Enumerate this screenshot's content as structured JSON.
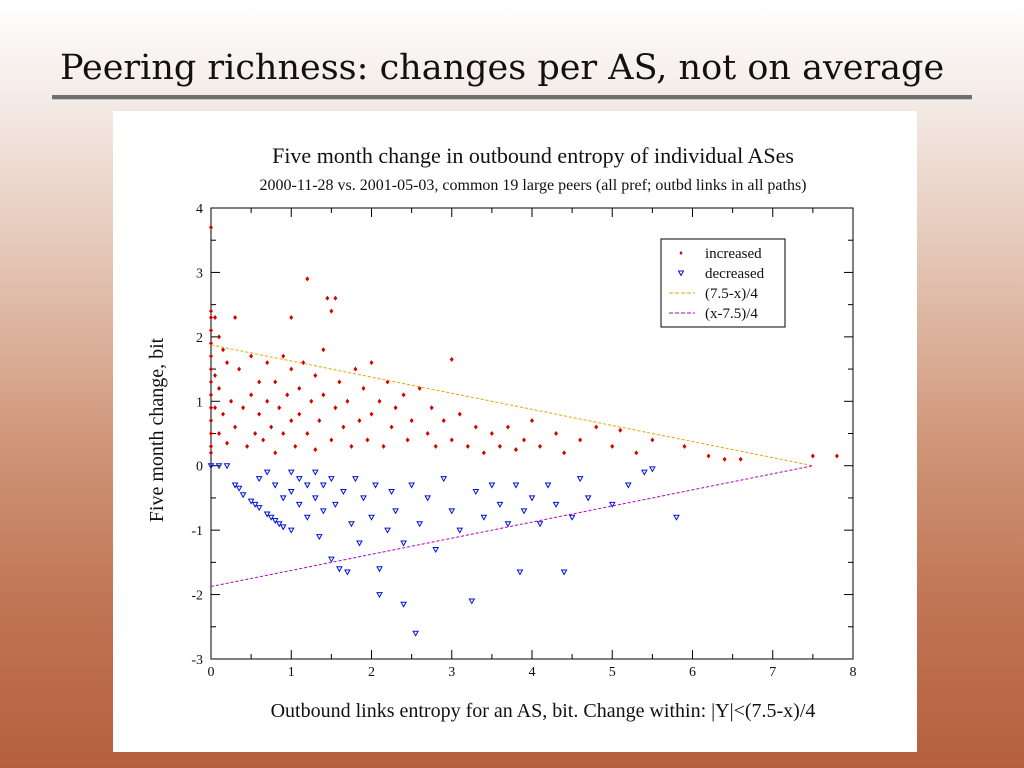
{
  "slide": {
    "title": "Peering richness: changes per AS, not on average"
  },
  "chart_data": {
    "type": "scatter",
    "title": "Five month change in outbound entropy of individual ASes",
    "subtitle": "2000-11-28 vs. 2001-05-03, common 19 large peers (all pref; outbd links in all paths)",
    "xlabel": "Outbound links entropy for an AS, bit. Change within: |Y|<(7.5-x)/4",
    "ylabel": "Five month change, bit",
    "xlim": [
      0,
      8
    ],
    "ylim": [
      -3,
      4
    ],
    "xticks": [
      "0",
      "1",
      "2",
      "3",
      "4",
      "5",
      "6",
      "7",
      "8"
    ],
    "yticks": [
      "-3",
      "-2",
      "-1",
      "0",
      "1",
      "2",
      "3",
      "4"
    ],
    "legend": {
      "position": "top-right",
      "items": [
        {
          "label": "increased",
          "color": "#d40000",
          "marker": "diamond"
        },
        {
          "label": "decreased",
          "color": "#0010e0",
          "marker": "triangle-down"
        },
        {
          "label": "(7.5-x)/4",
          "color": "#f0a000",
          "marker": "dashed-line"
        },
        {
          "label": "(x-7.5)/4",
          "color": "#b000c8",
          "marker": "dashed-line"
        }
      ]
    },
    "series": [
      {
        "name": "increased",
        "color": "#d40000",
        "points": [
          [
            0,
            3.7
          ],
          [
            0,
            2.4
          ],
          [
            0,
            2.3
          ],
          [
            0,
            2.1
          ],
          [
            0,
            1.9
          ],
          [
            0,
            1.7
          ],
          [
            0,
            1.5
          ],
          [
            0,
            1.3
          ],
          [
            0,
            1.1
          ],
          [
            0,
            0.9
          ],
          [
            0,
            0.7
          ],
          [
            0,
            0.5
          ],
          [
            0,
            0.3
          ],
          [
            0,
            0.2
          ],
          [
            0.05,
            2.3
          ],
          [
            0.05,
            1.4
          ],
          [
            0.05,
            0.9
          ],
          [
            0.1,
            2.0
          ],
          [
            0.1,
            1.2
          ],
          [
            0.1,
            0.5
          ],
          [
            0.15,
            1.8
          ],
          [
            0.15,
            0.8
          ],
          [
            0.2,
            1.6
          ],
          [
            0.2,
            0.35
          ],
          [
            0.25,
            1.0
          ],
          [
            0.3,
            2.3
          ],
          [
            0.3,
            0.6
          ],
          [
            0.35,
            1.5
          ],
          [
            0.4,
            0.9
          ],
          [
            0.45,
            0.3
          ],
          [
            0.5,
            1.7
          ],
          [
            0.5,
            1.1
          ],
          [
            0.55,
            0.5
          ],
          [
            0.6,
            1.3
          ],
          [
            0.6,
            0.8
          ],
          [
            0.65,
            0.4
          ],
          [
            0.7,
            1.6
          ],
          [
            0.7,
            1.0
          ],
          [
            0.75,
            0.6
          ],
          [
            0.8,
            1.3
          ],
          [
            0.8,
            0.2
          ],
          [
            0.85,
            0.9
          ],
          [
            0.9,
            1.7
          ],
          [
            0.9,
            0.5
          ],
          [
            0.95,
            1.1
          ],
          [
            1.0,
            2.3
          ],
          [
            1.0,
            1.5
          ],
          [
            1.0,
            0.7
          ],
          [
            1.05,
            0.3
          ],
          [
            1.1,
            1.2
          ],
          [
            1.1,
            0.8
          ],
          [
            1.15,
            1.6
          ],
          [
            1.2,
            2.9
          ],
          [
            1.2,
            0.5
          ],
          [
            1.25,
            1.0
          ],
          [
            1.3,
            1.4
          ],
          [
            1.3,
            0.25
          ],
          [
            1.35,
            0.7
          ],
          [
            1.4,
            1.8
          ],
          [
            1.4,
            1.1
          ],
          [
            1.45,
            2.6
          ],
          [
            1.5,
            2.4
          ],
          [
            1.5,
            0.4
          ],
          [
            1.55,
            2.6
          ],
          [
            1.55,
            0.9
          ],
          [
            1.6,
            1.3
          ],
          [
            1.65,
            0.6
          ],
          [
            1.7,
            1.0
          ],
          [
            1.75,
            0.3
          ],
          [
            1.8,
            1.5
          ],
          [
            1.85,
            0.7
          ],
          [
            1.9,
            1.2
          ],
          [
            1.95,
            0.4
          ],
          [
            2.0,
            1.6
          ],
          [
            2.0,
            0.8
          ],
          [
            2.1,
            1.0
          ],
          [
            2.15,
            0.3
          ],
          [
            2.2,
            1.3
          ],
          [
            2.25,
            0.6
          ],
          [
            2.3,
            0.9
          ],
          [
            2.4,
            1.1
          ],
          [
            2.45,
            0.4
          ],
          [
            2.5,
            0.7
          ],
          [
            2.6,
            1.2
          ],
          [
            2.7,
            0.5
          ],
          [
            2.75,
            0.9
          ],
          [
            2.8,
            0.3
          ],
          [
            2.9,
            0.7
          ],
          [
            3.0,
            1.65
          ],
          [
            3.0,
            0.4
          ],
          [
            3.1,
            0.8
          ],
          [
            3.2,
            0.3
          ],
          [
            3.3,
            0.6
          ],
          [
            3.4,
            0.2
          ],
          [
            3.5,
            0.5
          ],
          [
            3.6,
            0.3
          ],
          [
            3.7,
            0.6
          ],
          [
            3.8,
            0.25
          ],
          [
            3.9,
            0.4
          ],
          [
            4.0,
            0.7
          ],
          [
            4.1,
            0.3
          ],
          [
            4.3,
            0.5
          ],
          [
            4.4,
            0.2
          ],
          [
            4.6,
            0.4
          ],
          [
            4.8,
            0.6
          ],
          [
            5.0,
            0.3
          ],
          [
            5.1,
            0.55
          ],
          [
            5.3,
            0.2
          ],
          [
            5.5,
            0.4
          ],
          [
            5.9,
            0.3
          ],
          [
            6.2,
            0.15
          ],
          [
            6.4,
            0.1
          ],
          [
            6.6,
            0.1
          ],
          [
            7.5,
            0.15
          ],
          [
            7.8,
            0.15
          ]
        ]
      },
      {
        "name": "decreased",
        "color": "#0010e0",
        "points": [
          [
            0,
            0.0
          ],
          [
            0.1,
            0.0
          ],
          [
            0.2,
            0.0
          ],
          [
            0.3,
            -0.3
          ],
          [
            0.35,
            -0.35
          ],
          [
            0.4,
            -0.45
          ],
          [
            0.5,
            -0.55
          ],
          [
            0.55,
            -0.6
          ],
          [
            0.6,
            -0.65
          ],
          [
            0.7,
            -0.75
          ],
          [
            0.75,
            -0.8
          ],
          [
            0.8,
            -0.85
          ],
          [
            0.85,
            -0.9
          ],
          [
            0.9,
            -0.95
          ],
          [
            1.0,
            -1.0
          ],
          [
            0.6,
            -0.2
          ],
          [
            0.7,
            -0.1
          ],
          [
            0.8,
            -0.3
          ],
          [
            0.9,
            -0.5
          ],
          [
            1.0,
            -0.1
          ],
          [
            1.0,
            -0.4
          ],
          [
            1.1,
            -0.2
          ],
          [
            1.1,
            -0.6
          ],
          [
            1.2,
            -0.3
          ],
          [
            1.2,
            -0.8
          ],
          [
            1.3,
            -0.1
          ],
          [
            1.3,
            -0.5
          ],
          [
            1.35,
            -1.1
          ],
          [
            1.4,
            -0.3
          ],
          [
            1.4,
            -0.7
          ],
          [
            1.5,
            -0.2
          ],
          [
            1.5,
            -1.45
          ],
          [
            1.55,
            -0.6
          ],
          [
            1.6,
            -1.6
          ],
          [
            1.65,
            -0.4
          ],
          [
            1.7,
            -1.65
          ],
          [
            1.75,
            -0.9
          ],
          [
            1.8,
            -0.2
          ],
          [
            1.85,
            -1.2
          ],
          [
            1.9,
            -0.5
          ],
          [
            2.0,
            -0.8
          ],
          [
            2.05,
            -0.3
          ],
          [
            2.1,
            -1.6
          ],
          [
            2.1,
            -2.0
          ],
          [
            2.2,
            -1.0
          ],
          [
            2.25,
            -0.4
          ],
          [
            2.3,
            -0.7
          ],
          [
            2.4,
            -1.2
          ],
          [
            2.4,
            -2.15
          ],
          [
            2.5,
            -0.3
          ],
          [
            2.55,
            -2.6
          ],
          [
            2.6,
            -0.9
          ],
          [
            2.7,
            -0.5
          ],
          [
            2.8,
            -1.3
          ],
          [
            2.9,
            -0.2
          ],
          [
            3.0,
            -0.7
          ],
          [
            3.1,
            -1.0
          ],
          [
            3.25,
            -2.1
          ],
          [
            3.3,
            -0.4
          ],
          [
            3.4,
            -0.8
          ],
          [
            3.5,
            -0.3
          ],
          [
            3.6,
            -0.6
          ],
          [
            3.7,
            -0.9
          ],
          [
            3.8,
            -0.3
          ],
          [
            3.85,
            -1.65
          ],
          [
            3.9,
            -0.7
          ],
          [
            4.0,
            -0.5
          ],
          [
            4.1,
            -0.9
          ],
          [
            4.2,
            -0.3
          ],
          [
            4.3,
            -0.6
          ],
          [
            4.4,
            -1.65
          ],
          [
            4.5,
            -0.8
          ],
          [
            4.6,
            -0.2
          ],
          [
            4.7,
            -0.5
          ],
          [
            5.0,
            -0.6
          ],
          [
            5.2,
            -0.3
          ],
          [
            5.4,
            -0.1
          ],
          [
            5.5,
            -0.05
          ],
          [
            5.8,
            -0.8
          ]
        ]
      },
      {
        "name": "(7.5-x)/4",
        "color": "#f0a000",
        "line": [
          [
            0,
            1.875
          ],
          [
            7.5,
            0
          ]
        ]
      },
      {
        "name": "(x-7.5)/4",
        "color": "#b000c8",
        "line": [
          [
            0,
            -1.875
          ],
          [
            7.5,
            0
          ]
        ]
      }
    ]
  }
}
